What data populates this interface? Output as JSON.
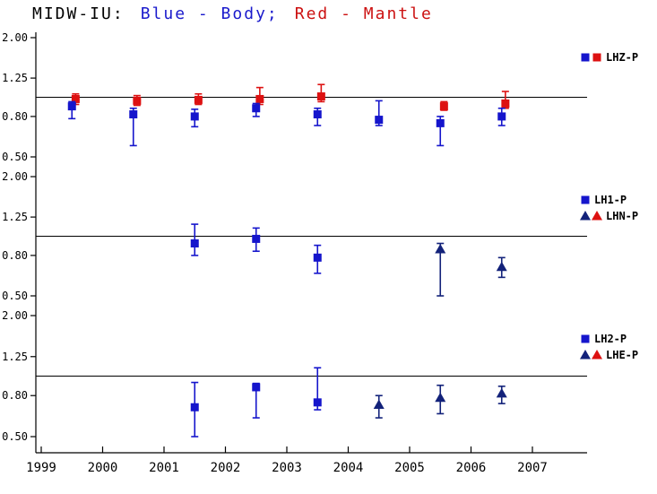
{
  "chart_data": {
    "type": "scatter",
    "title_parts": [
      {
        "text": "MIDW-IU:",
        "color": "#000000"
      },
      {
        "text": "Blue - Body;",
        "color": "#1a1acc"
      },
      {
        "text": "Red - Mantle",
        "color": "#cc1111"
      }
    ],
    "x_ticks": [
      "1999",
      "2000",
      "2001",
      "2002",
      "2003",
      "2004",
      "2005",
      "2006",
      "2007"
    ],
    "x_range": [
      1999,
      2007.9
    ],
    "y_ticks": [
      "2.00",
      "1.25",
      "0.80",
      "0.50"
    ],
    "y_tick_values": [
      2.0,
      1.25,
      0.8,
      0.5
    ],
    "y_range": [
      0.5,
      2.0
    ],
    "y_scale": "log",
    "grid": false,
    "legend_position": "right",
    "reference_value": 1.0,
    "colors": {
      "body": "#1515cc",
      "mantle": "#dd1111",
      "triangle": "#13227a",
      "axis": "#000000"
    },
    "panels": [
      {
        "legend": [
          {
            "markers": [
              {
                "shape": "square",
                "color": "body"
              },
              {
                "shape": "square",
                "color": "mantle"
              }
            ],
            "label": "LHZ-P"
          }
        ],
        "series": [
          {
            "name": "mantle",
            "shape": "square",
            "color": "mantle",
            "points": [
              {
                "x": 1999.56,
                "y": 0.98,
                "lo": 0.92,
                "hi": 1.04
              },
              {
                "x": 2000.56,
                "y": 0.96,
                "lo": 0.91,
                "hi": 1.02
              },
              {
                "x": 2001.56,
                "y": 0.97,
                "lo": 0.92,
                "hi": 1.04
              },
              {
                "x": 2002.56,
                "y": 0.98,
                "lo": 0.92,
                "hi": 1.12
              },
              {
                "x": 2003.56,
                "y": 1.01,
                "lo": 0.95,
                "hi": 1.16
              },
              {
                "x": 2005.56,
                "y": 0.9,
                "lo": 0.86,
                "hi": 0.95
              },
              {
                "x": 2006.56,
                "y": 0.93,
                "lo": 0.88,
                "hi": 1.07
              }
            ]
          },
          {
            "name": "body",
            "shape": "square",
            "color": "body",
            "points": [
              {
                "x": 1999.5,
                "y": 0.9,
                "lo": 0.78,
                "hi": 0.95
              },
              {
                "x": 2000.5,
                "y": 0.82,
                "lo": 0.57,
                "hi": 0.88
              },
              {
                "x": 2001.5,
                "y": 0.8,
                "lo": 0.71,
                "hi": 0.87
              },
              {
                "x": 2002.5,
                "y": 0.88,
                "lo": 0.8,
                "hi": 0.93
              },
              {
                "x": 2003.5,
                "y": 0.82,
                "lo": 0.72,
                "hi": 0.88
              },
              {
                "x": 2004.5,
                "y": 0.77,
                "lo": 0.72,
                "hi": 0.96
              },
              {
                "x": 2005.5,
                "y": 0.74,
                "lo": 0.57,
                "hi": 0.8
              },
              {
                "x": 2006.5,
                "y": 0.8,
                "lo": 0.72,
                "hi": 0.88
              }
            ]
          }
        ]
      },
      {
        "legend": [
          {
            "markers": [
              {
                "shape": "square",
                "color": "body"
              }
            ],
            "label": "LH1-P"
          },
          {
            "markers": [
              {
                "shape": "triangle",
                "color": "triangle"
              },
              {
                "shape": "triangle",
                "color": "mantle"
              }
            ],
            "label": "LHN-P"
          }
        ],
        "series": [
          {
            "name": "LH1",
            "shape": "square",
            "color": "body",
            "points": [
              {
                "x": 2001.5,
                "y": 0.92,
                "lo": 0.8,
                "hi": 1.15
              },
              {
                "x": 2002.5,
                "y": 0.97,
                "lo": 0.84,
                "hi": 1.1
              },
              {
                "x": 2003.5,
                "y": 0.78,
                "lo": 0.65,
                "hi": 0.9
              }
            ]
          },
          {
            "name": "LHN",
            "shape": "triangle",
            "color": "triangle",
            "points": [
              {
                "x": 2005.5,
                "y": 0.86,
                "lo": 0.5,
                "hi": 0.92
              },
              {
                "x": 2006.5,
                "y": 0.7,
                "lo": 0.62,
                "hi": 0.78
              }
            ]
          }
        ]
      },
      {
        "legend": [
          {
            "markers": [
              {
                "shape": "square",
                "color": "body"
              }
            ],
            "label": "LH2-P"
          },
          {
            "markers": [
              {
                "shape": "triangle",
                "color": "triangle"
              },
              {
                "shape": "triangle",
                "color": "mantle"
              }
            ],
            "label": "LHE-P"
          }
        ],
        "series": [
          {
            "name": "LH2",
            "shape": "square",
            "color": "body",
            "points": [
              {
                "x": 2001.5,
                "y": 0.7,
                "lo": 0.5,
                "hi": 0.93
              },
              {
                "x": 2002.5,
                "y": 0.88,
                "lo": 0.62,
                "hi": 0.92
              },
              {
                "x": 2003.5,
                "y": 0.74,
                "lo": 0.68,
                "hi": 1.1
              }
            ]
          },
          {
            "name": "LHE",
            "shape": "triangle",
            "color": "triangle",
            "points": [
              {
                "x": 2004.5,
                "y": 0.72,
                "lo": 0.62,
                "hi": 0.8
              },
              {
                "x": 2005.5,
                "y": 0.78,
                "lo": 0.65,
                "hi": 0.9
              },
              {
                "x": 2006.5,
                "y": 0.82,
                "lo": 0.73,
                "hi": 0.89
              }
            ]
          }
        ]
      }
    ]
  }
}
